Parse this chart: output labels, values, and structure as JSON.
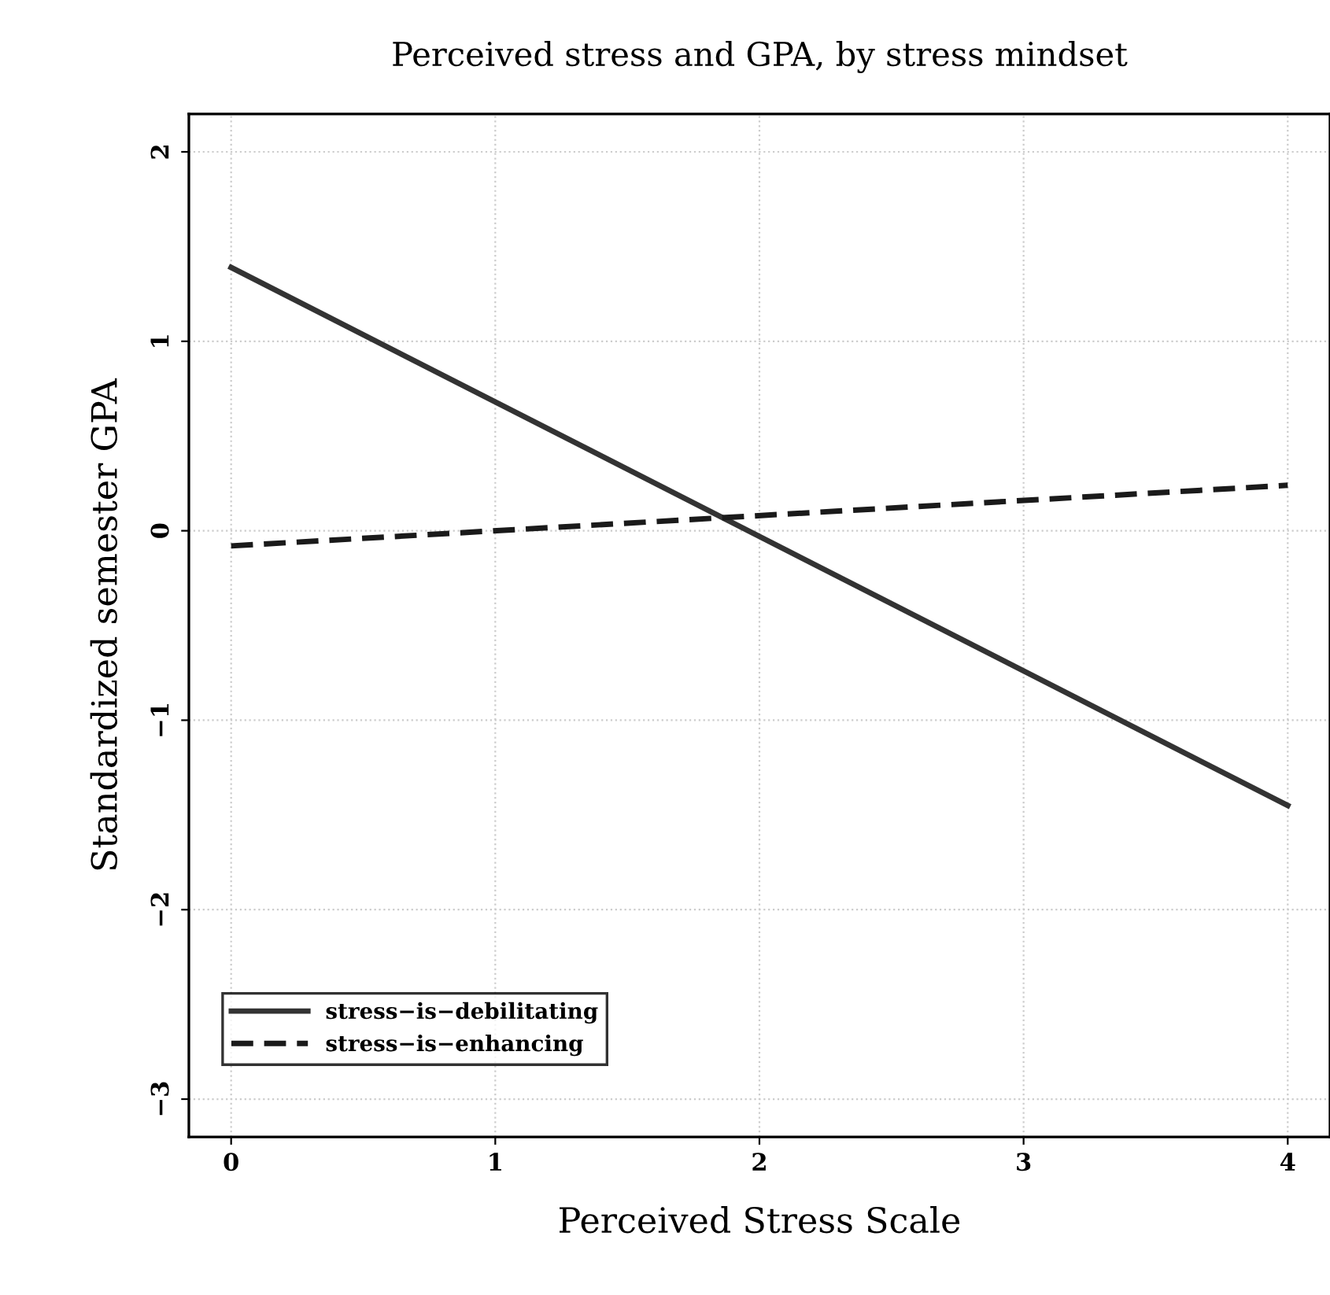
{
  "chart_data": {
    "type": "line",
    "title": "Perceived stress and GPA, by stress mindset",
    "xlabel": "Perceived Stress Scale",
    "ylabel": "Standardized semester GPA",
    "x": [
      0,
      4
    ],
    "series": [
      {
        "name": "stress−is−debilitating",
        "color": "#333333",
        "values": [
          1.39,
          -1.45
        ],
        "line_style": "solid"
      },
      {
        "name": "stress−is−enhancing",
        "color": "#1a1a1a",
        "values": [
          -0.08,
          0.24
        ],
        "line_style": "dashed"
      }
    ],
    "xlim": [
      -0.16,
      4.16
    ],
    "ylim": [
      -3.2,
      2.2
    ],
    "xticks": [
      0,
      1,
      2,
      3,
      4
    ],
    "yticks": [
      -3,
      -2,
      -1,
      0,
      1,
      2
    ],
    "grid": true,
    "legend": "bottom left",
    "marker": "none"
  }
}
